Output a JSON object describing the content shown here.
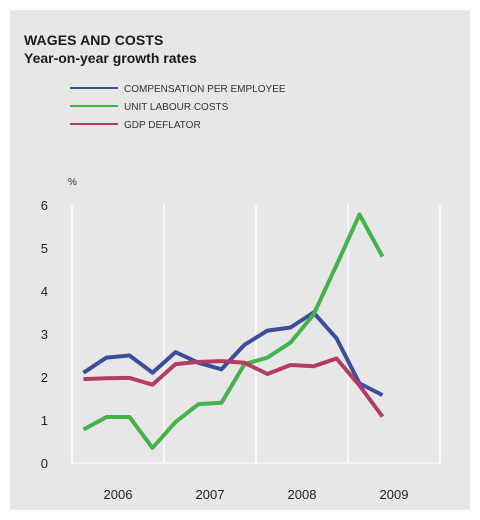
{
  "chart_data": {
    "type": "line",
    "title": "WAGES AND COSTS",
    "subtitle": "Year-on-year growth rates",
    "ylabel": "%",
    "xlabel": "",
    "ylim": [
      0,
      6
    ],
    "yticks": [
      "0",
      "1",
      "2",
      "3",
      "4",
      "5",
      "6"
    ],
    "categories": [
      "2006",
      "2007",
      "2008",
      "2009"
    ],
    "x": [
      "2006Q1",
      "2006Q2",
      "2006Q3",
      "2006Q4",
      "2007Q1",
      "2007Q2",
      "2007Q3",
      "2007Q4",
      "2008Q1",
      "2008Q2",
      "2008Q3",
      "2008Q4",
      "2009Q1",
      "2009Q2",
      "2009Q3"
    ],
    "grid": true,
    "legend_position": "top-left",
    "series": [
      {
        "name": "COMPENSATION PER EMPLOYEE",
        "color": "#3c4d9b",
        "values": [
          2.1,
          2.45,
          2.5,
          2.1,
          2.58,
          2.33,
          2.18,
          2.75,
          3.08,
          3.15,
          3.5,
          2.9,
          1.85,
          1.58,
          null
        ]
      },
      {
        "name": "UNIT LABOUR COSTS",
        "color": "#45b24a",
        "values": [
          0.78,
          1.07,
          1.07,
          0.35,
          0.95,
          1.37,
          1.4,
          2.3,
          2.45,
          2.8,
          3.45,
          4.6,
          5.78,
          4.8,
          null
        ]
      },
      {
        "name": "GDP DEFLATOR",
        "color": "#b43c64",
        "values": [
          1.95,
          1.97,
          1.98,
          1.82,
          2.3,
          2.35,
          2.37,
          2.33,
          2.07,
          2.28,
          2.25,
          2.43,
          1.8,
          1.08,
          null
        ]
      }
    ]
  }
}
